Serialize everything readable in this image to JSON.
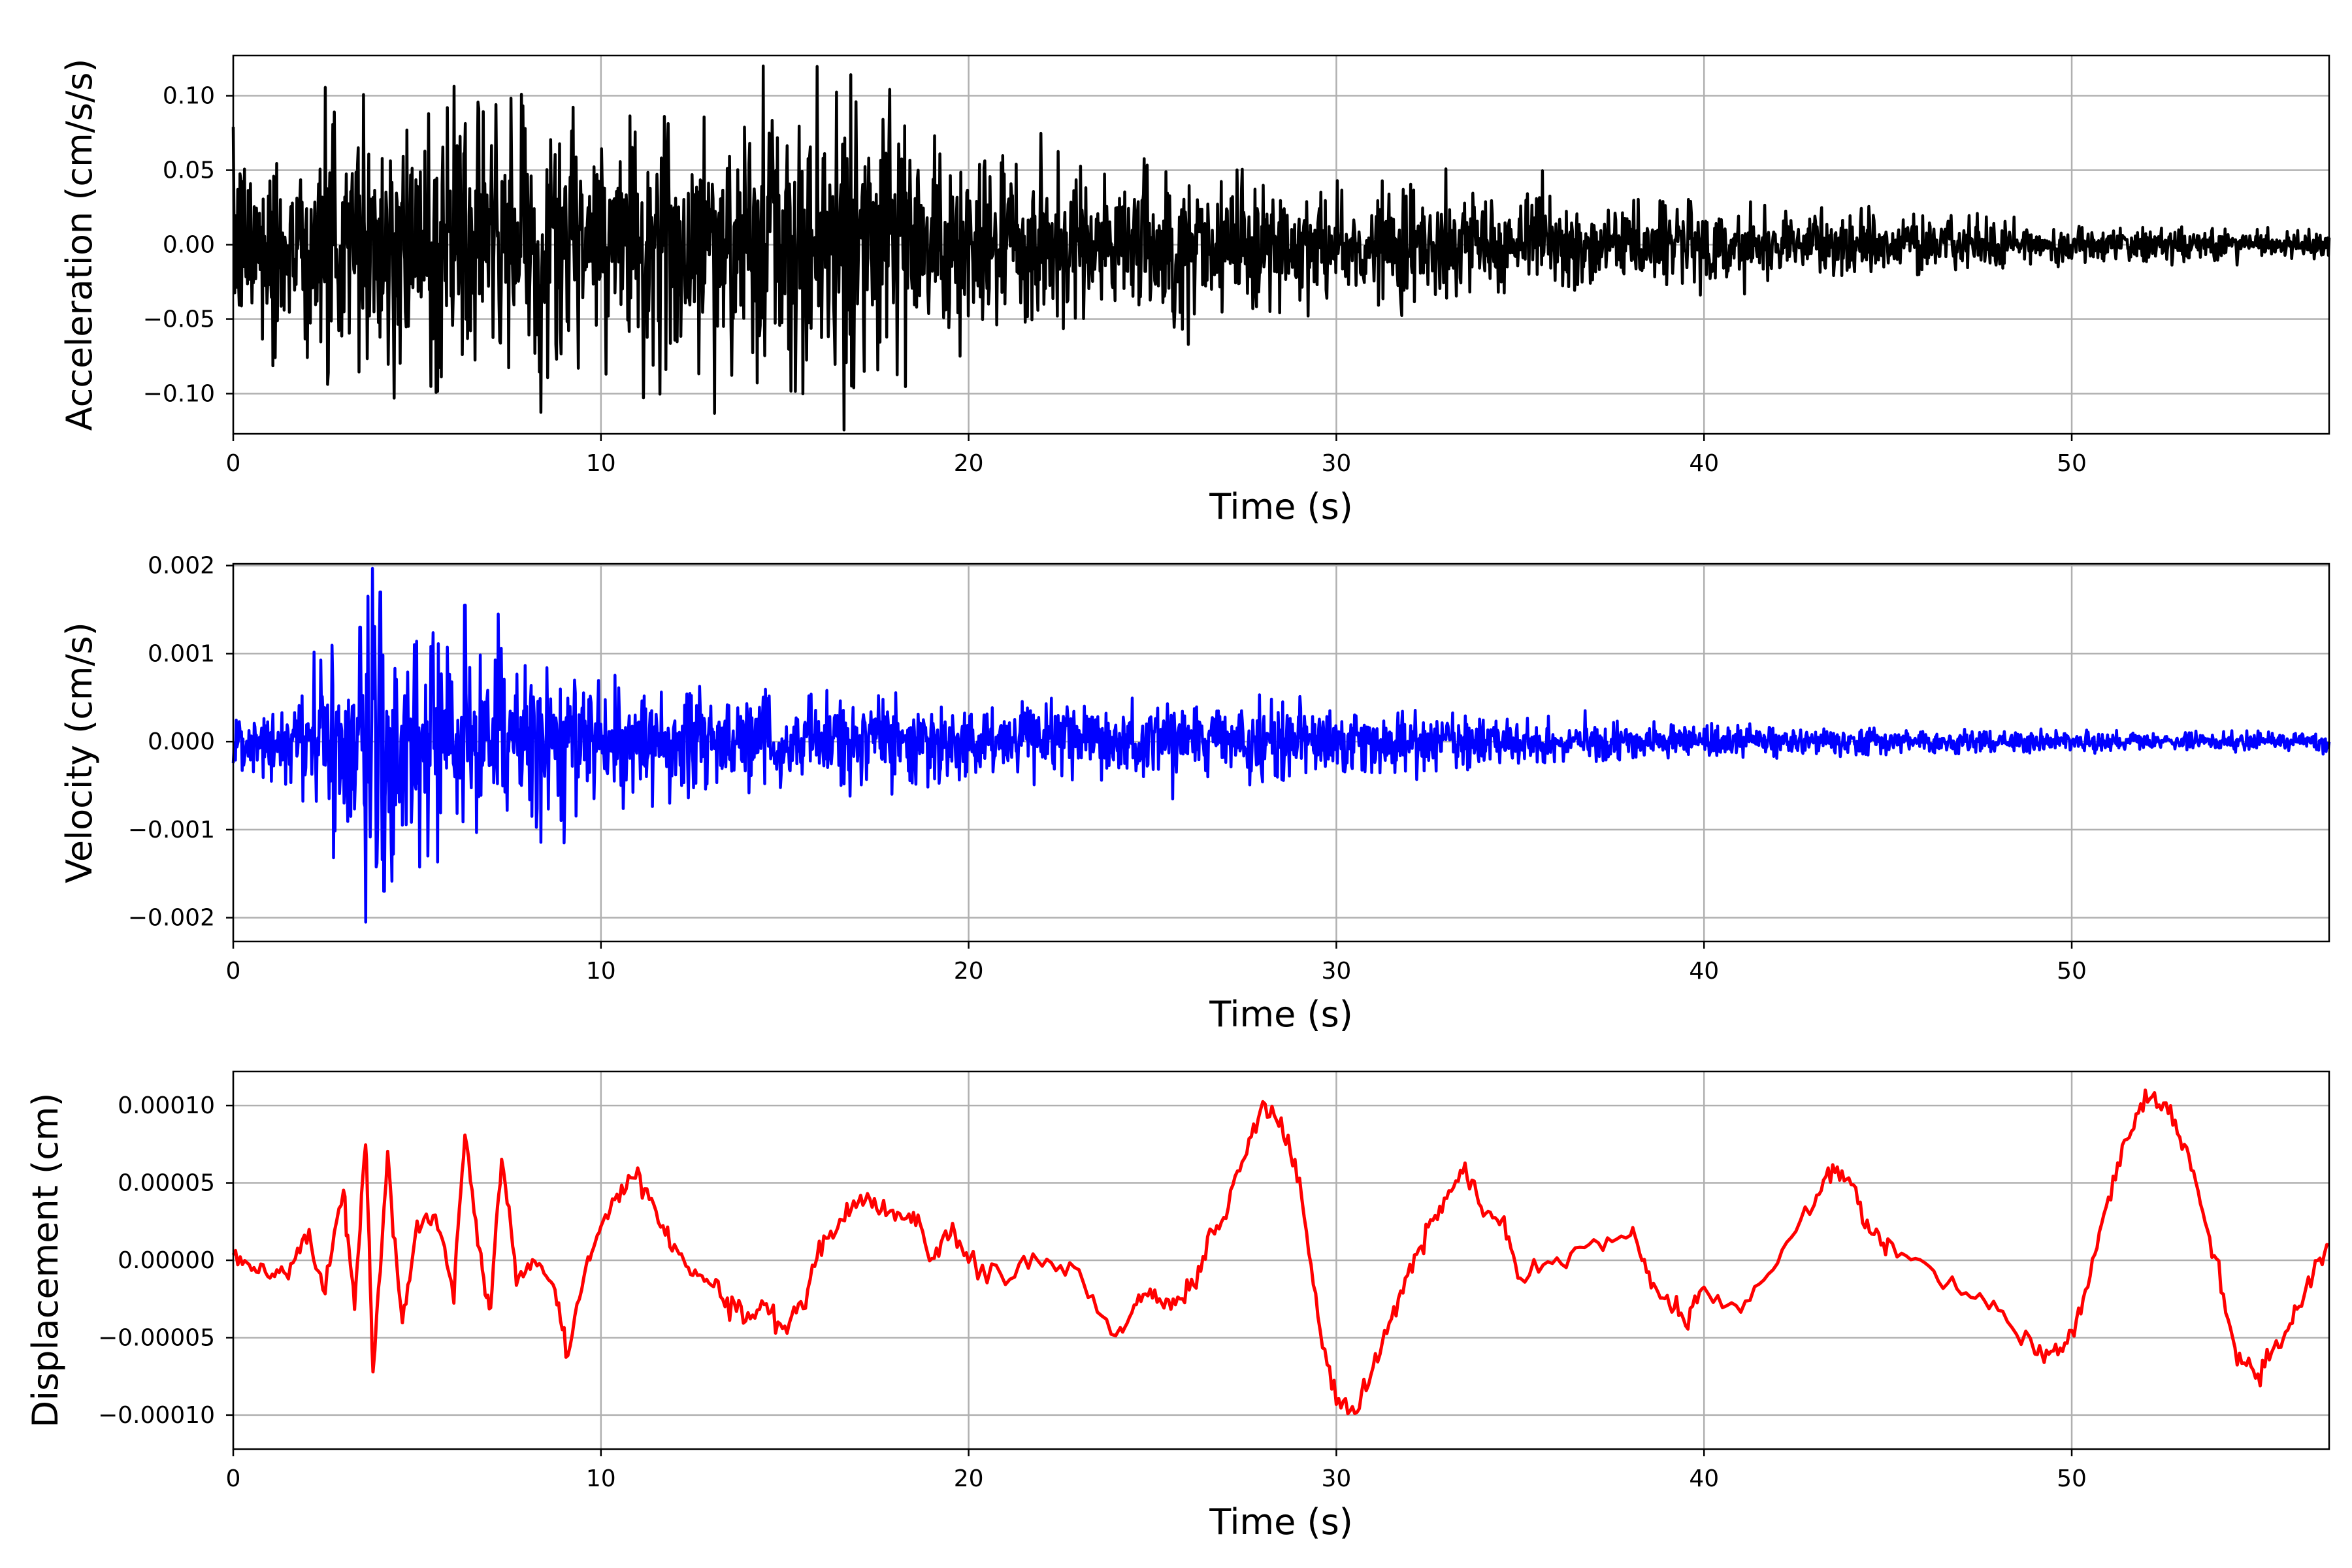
{
  "chart_data": [
    {
      "type": "line",
      "name": "acceleration-panel",
      "xlabel": "Time (s)",
      "ylabel": "Acceleration (cm/s/s)",
      "xlim": [
        0,
        57
      ],
      "ylim": [
        -0.127,
        0.127
      ],
      "xticks": [
        0,
        10,
        20,
        30,
        40,
        50
      ],
      "yticks": [
        -0.1,
        -0.05,
        0.0,
        0.05,
        0.1
      ],
      "ytick_labels": [
        "−0.10",
        "−0.05",
        "0.00",
        "0.05",
        "0.10"
      ],
      "grid": true,
      "color": "#000000",
      "signal": "noise",
      "envelope": [
        {
          "t": 0,
          "amp": 0.075
        },
        {
          "t": 3.6,
          "amp": 0.105
        },
        {
          "t": 6,
          "amp": 0.1
        },
        {
          "t": 11,
          "amp": 0.105
        },
        {
          "t": 16.3,
          "amp": 0.105
        },
        {
          "t": 20,
          "amp": 0.065
        },
        {
          "t": 24,
          "amp": 0.062
        },
        {
          "t": 30,
          "amp": 0.045
        },
        {
          "t": 32,
          "amp": 0.045
        },
        {
          "t": 36,
          "amp": 0.032
        },
        {
          "t": 40,
          "amp": 0.03
        },
        {
          "t": 45,
          "amp": 0.024
        },
        {
          "t": 50,
          "amp": 0.014
        },
        {
          "t": 57,
          "amp": 0.01
        }
      ]
    },
    {
      "type": "line",
      "name": "velocity-panel",
      "xlabel": "Time (s)",
      "ylabel": "Velocity (cm/s)",
      "xlim": [
        0,
        57
      ],
      "ylim": [
        -0.00227,
        0.00202
      ],
      "xticks": [
        0,
        10,
        20,
        30,
        40,
        50
      ],
      "yticks": [
        -0.002,
        -0.001,
        0.0,
        0.001,
        0.002
      ],
      "ytick_labels": [
        "−0.002",
        "−0.001",
        "0.000",
        "0.001",
        "0.002"
      ],
      "grid": true,
      "color": "#0000ff",
      "signal": "noise",
      "envelope": [
        {
          "t": 0,
          "amp": 0.0003
        },
        {
          "t": 2,
          "amp": 0.0007
        },
        {
          "t": 3.6,
          "amp": 0.0017
        },
        {
          "t": 6.3,
          "amp": 0.0013
        },
        {
          "t": 9,
          "amp": 0.0009
        },
        {
          "t": 12,
          "amp": 0.0007
        },
        {
          "t": 20,
          "amp": 0.0005
        },
        {
          "t": 28,
          "amp": 0.0005
        },
        {
          "t": 30,
          "amp": 0.0004
        },
        {
          "t": 38,
          "amp": 0.00025
        },
        {
          "t": 45,
          "amp": 0.00015
        },
        {
          "t": 57,
          "amp": 0.00012
        }
      ],
      "peaks": [
        {
          "t": 3.45,
          "y": 0.0013
        },
        {
          "t": 3.6,
          "y": -0.00205
        },
        {
          "t": 4.0,
          "y": 0.0017
        },
        {
          "t": 4.1,
          "y": -0.0017
        },
        {
          "t": 6.3,
          "y": 0.00155
        },
        {
          "t": 5.3,
          "y": -0.0013
        },
        {
          "t": 7.2,
          "y": 0.00145
        },
        {
          "t": 9.0,
          "y": -0.00115
        }
      ]
    },
    {
      "type": "line",
      "name": "displacement-panel",
      "xlabel": "Time (s)",
      "ylabel": "Displacement (cm)",
      "xlim": [
        0,
        57
      ],
      "ylim": [
        -0.000122,
        0.000122
      ],
      "xticks": [
        0,
        10,
        20,
        30,
        40,
        50
      ],
      "yticks": [
        -0.0001,
        -5e-05,
        0.0,
        5e-05,
        0.0001
      ],
      "ytick_labels": [
        "−0.00010",
        "−0.00005",
        "0.00000",
        "0.00005",
        "0.00010"
      ],
      "grid": true,
      "color": "#ff0000",
      "signal": "smooth",
      "x": [
        0,
        0.5,
        1,
        1.5,
        2,
        2.5,
        3,
        3.3,
        3.6,
        3.8,
        4.2,
        4.6,
        5,
        5.5,
        6,
        6.3,
        6.7,
        7,
        7.3,
        7.7,
        8.2,
        8.7,
        9.1,
        9.6,
        10,
        10.5,
        11,
        11.5,
        12,
        12.5,
        13,
        13.5,
        14,
        14.5,
        15,
        15.5,
        16,
        16.5,
        17,
        17.5,
        18,
        18.5,
        19,
        19.5,
        20,
        21,
        22,
        23,
        24,
        24.5,
        25,
        25.5,
        26,
        26.5,
        27,
        27.5,
        28,
        28.5,
        29,
        29.5,
        30,
        30.5,
        31,
        31.5,
        32,
        32.5,
        33,
        33.5,
        34,
        34.5,
        35,
        36,
        37,
        38,
        38.5,
        39,
        39.5,
        40,
        41,
        42,
        43,
        43.5,
        44,
        44.5,
        45,
        46,
        47,
        48,
        49,
        49.5,
        50,
        50.5,
        51,
        51.5,
        52,
        52.5,
        53,
        53.5,
        54,
        54.5,
        55,
        55.5,
        56,
        56.5,
        57
      ],
      "values": [
        5e-06,
        -5e-06,
        -1e-05,
        -5e-06,
        2e-05,
        -2e-05,
        4.5e-05,
        -3e-05,
        8e-05,
        -7e-05,
        6.5e-05,
        -4e-05,
        2e-05,
        3e-05,
        -2e-05,
        8.5e-05,
        5e-06,
        -3e-05,
        7e-05,
        -1e-05,
        0.0,
        -1.5e-05,
        -6e-05,
        0.0,
        2e-05,
        4.5e-05,
        5.5e-05,
        3.5e-05,
        5e-06,
        -1e-05,
        -1e-05,
        -3e-05,
        -4e-05,
        -3e-05,
        -4.5e-05,
        -2.5e-05,
        1e-05,
        2.5e-05,
        4e-05,
        3.5e-05,
        3e-05,
        3e-05,
        0.0,
        2e-05,
        0.0,
        -1e-05,
        0.0,
        -1e-05,
        -5e-05,
        -3e-05,
        -2e-05,
        -3e-05,
        -2e-05,
        1e-05,
        3e-05,
        7e-05,
        0.0001,
        9e-05,
        5e-05,
        -4e-05,
        -9e-05,
        -0.0001,
        -7e-05,
        -4e-05,
        -5e-06,
        2e-05,
        4e-05,
        6e-05,
        3e-05,
        2.5e-05,
        -1e-05,
        0.0,
        1e-05,
        2e-05,
        -1e-05,
        -3e-05,
        -4e-05,
        -2e-05,
        -3.5e-05,
        0.0,
        4e-05,
        6e-05,
        5e-05,
        2e-05,
        1e-05,
        0.0,
        -2e-05,
        -3e-05,
        -6e-05,
        -6e-05,
        -5e-05,
        -1e-05,
        4e-05,
        8e-05,
        0.000105,
        0.0001,
        8e-05,
        4e-05,
        -1e-05,
        -6e-05,
        -7.5e-05,
        -6e-05,
        -4e-05,
        -1.5e-05,
        1e-05
      ]
    }
  ]
}
